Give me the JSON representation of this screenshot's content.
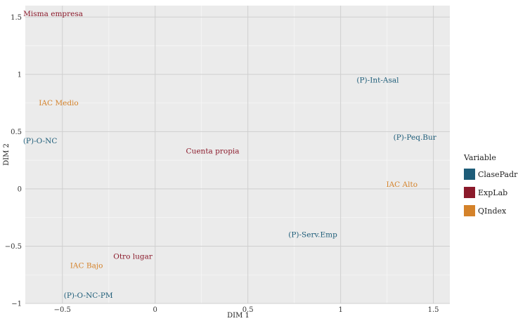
{
  "chart_data": {
    "type": "scatter",
    "xlabel": "DIM 1",
    "ylabel": "DIM 2",
    "xlim": [
      -0.7,
      1.6
    ],
    "ylim": [
      -1.0,
      1.6
    ],
    "xticks": [
      -0.5,
      0,
      0.5,
      1,
      1.5
    ],
    "xtick_labels": [
      "−0.5",
      "0",
      "0.5",
      "1",
      "1.5"
    ],
    "yticks": [
      -1,
      -0.5,
      0,
      0.5,
      1,
      1.5
    ],
    "ytick_labels": [
      "−1",
      "−0.5",
      "0",
      "0.5",
      "1",
      "1.5"
    ],
    "grid": true,
    "legend": {
      "title": "Variable",
      "placement": "right",
      "entries": [
        {
          "name": "ClasePadre",
          "color": "#1d5c78"
        },
        {
          "name": "ExpLab",
          "color": "#8b1a2b"
        },
        {
          "name": "QIndex",
          "color": "#d4822a"
        }
      ]
    },
    "points": [
      {
        "label": "Misma empresa",
        "group": "ExpLab",
        "x": -0.55,
        "y": 1.53
      },
      {
        "label": "(P)-Int-Asal",
        "group": "ClasePadre",
        "x": 1.2,
        "y": 0.95
      },
      {
        "label": "IAC Medio",
        "group": "QIndex",
        "x": -0.52,
        "y": 0.75
      },
      {
        "label": "(P)-Peq.Bur",
        "group": "ClasePadre",
        "x": 1.4,
        "y": 0.45
      },
      {
        "label": "(P)-O-NC",
        "group": "ClasePadre",
        "x": -0.62,
        "y": 0.42
      },
      {
        "label": "Cuenta propia",
        "group": "ExpLab",
        "x": 0.31,
        "y": 0.33
      },
      {
        "label": "IAC Alto",
        "group": "QIndex",
        "x": 1.33,
        "y": 0.04
      },
      {
        "label": "(P)-Serv.Emp",
        "group": "ClasePadre",
        "x": 0.85,
        "y": -0.4
      },
      {
        "label": "Otro lugar",
        "group": "ExpLab",
        "x": -0.12,
        "y": -0.59
      },
      {
        "label": "IAC Bajo",
        "group": "QIndex",
        "x": -0.37,
        "y": -0.67
      },
      {
        "label": "(P)-O-NC-PM",
        "group": "ClasePadre",
        "x": -0.36,
        "y": -0.93
      }
    ]
  }
}
